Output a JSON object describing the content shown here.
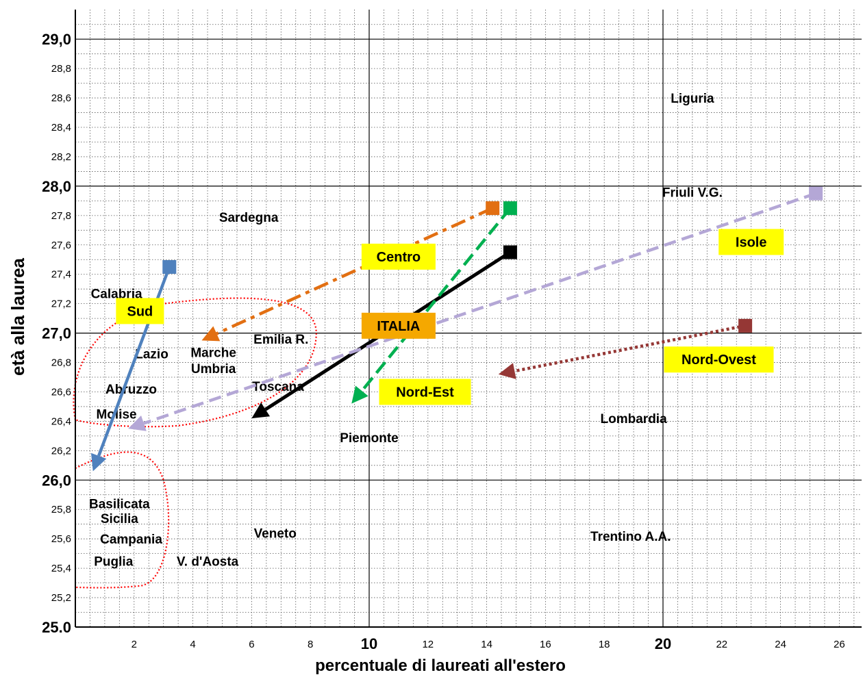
{
  "chart_data": {
    "type": "scatter",
    "xlabel": "percentuale di laureati all'estero",
    "ylabel": "età alla laurea",
    "xlim": [
      0,
      27
    ],
    "ylim": [
      25.0,
      29.2
    ],
    "grid": true,
    "x_ticks": [
      {
        "value": 2,
        "label": "2",
        "major": false
      },
      {
        "value": 4,
        "label": "4",
        "major": false
      },
      {
        "value": 6,
        "label": "6",
        "major": false
      },
      {
        "value": 8,
        "label": "8",
        "major": false
      },
      {
        "value": 10,
        "label": "10",
        "major": true
      },
      {
        "value": 12,
        "label": "12",
        "major": false
      },
      {
        "value": 14,
        "label": "14",
        "major": false
      },
      {
        "value": 16,
        "label": "16",
        "major": false
      },
      {
        "value": 18,
        "label": "18",
        "major": false
      },
      {
        "value": 20,
        "label": "20",
        "major": true
      },
      {
        "value": 22,
        "label": "22",
        "major": false
      },
      {
        "value": 24,
        "label": "24",
        "major": false
      },
      {
        "value": 26,
        "label": "26",
        "major": false
      }
    ],
    "y_ticks": [
      {
        "value": 25.0,
        "label": "25.0",
        "major": true
      },
      {
        "value": 25.2,
        "label": "25,2",
        "major": false
      },
      {
        "value": 25.4,
        "label": "25,4",
        "major": false
      },
      {
        "value": 25.6,
        "label": "25,6",
        "major": false
      },
      {
        "value": 25.8,
        "label": "25,8",
        "major": false
      },
      {
        "value": 26.0,
        "label": "26,0",
        "major": true
      },
      {
        "value": 26.2,
        "label": "26,2",
        "major": false
      },
      {
        "value": 26.4,
        "label": "26,4",
        "major": false
      },
      {
        "value": 26.6,
        "label": "26,6",
        "major": false
      },
      {
        "value": 26.8,
        "label": "26,8",
        "major": false
      },
      {
        "value": 27.0,
        "label": "27,0",
        "major": true
      },
      {
        "value": 27.2,
        "label": "27,2",
        "major": false
      },
      {
        "value": 27.4,
        "label": "27,4",
        "major": false
      },
      {
        "value": 27.6,
        "label": "27,6",
        "major": false
      },
      {
        "value": 27.8,
        "label": "27,8",
        "major": false
      },
      {
        "value": 28.0,
        "label": "28,0",
        "major": true
      },
      {
        "value": 28.2,
        "label": "28,2",
        "major": false
      },
      {
        "value": 28.4,
        "label": "28,4",
        "major": false
      },
      {
        "value": 28.6,
        "label": "28,6",
        "major": false
      },
      {
        "value": 28.8,
        "label": "28,8",
        "major": false
      },
      {
        "value": 29.0,
        "label": "29,0",
        "major": true
      }
    ],
    "regions": [
      {
        "name": "Liguria",
        "x": 21.0,
        "y": 28.6
      },
      {
        "name": "Friuli V.G.",
        "x": 21.0,
        "y": 27.96
      },
      {
        "name": "Sardegna",
        "x": 5.9,
        "y": 27.79
      },
      {
        "name": "Calabria",
        "x": 1.4,
        "y": 27.27
      },
      {
        "name": "Emilia  R.",
        "x": 7.0,
        "y": 26.96
      },
      {
        "name": "Lazio",
        "x": 2.6,
        "y": 26.86
      },
      {
        "name": "Marche",
        "x": 4.7,
        "y": 26.87
      },
      {
        "name": "Umbria",
        "x": 4.7,
        "y": 26.76
      },
      {
        "name": "Toscana",
        "x": 6.9,
        "y": 26.64
      },
      {
        "name": "Abruzzo",
        "x": 1.9,
        "y": 26.62
      },
      {
        "name": "Molise",
        "x": 1.4,
        "y": 26.45
      },
      {
        "name": "Lombardia",
        "x": 19.0,
        "y": 26.42
      },
      {
        "name": "Piemonte",
        "x": 10.0,
        "y": 26.29
      },
      {
        "name": "Basilicata",
        "x": 1.5,
        "y": 25.84
      },
      {
        "name": "Sicilia",
        "x": 1.5,
        "y": 25.74
      },
      {
        "name": "Veneto",
        "x": 6.8,
        "y": 25.64
      },
      {
        "name": "Trentino A.A.",
        "x": 18.9,
        "y": 25.62
      },
      {
        "name": "Campania",
        "x": 1.9,
        "y": 25.6
      },
      {
        "name": "Puglia",
        "x": 1.3,
        "y": 25.45
      },
      {
        "name": "V. d'Aosta",
        "x": 4.5,
        "y": 25.45
      }
    ],
    "series": [
      {
        "name": "ITALIA",
        "color": "#000000",
        "dash": "solid",
        "from": {
          "x": 14.8,
          "y": 27.55
        },
        "to": {
          "x": 6.0,
          "y": 26.42
        },
        "label_at": {
          "x": 11.0,
          "y": 27.05
        },
        "label_bg": "#f5a800"
      },
      {
        "name": "Centro",
        "color": "#e26f12",
        "dash": "dashdot",
        "from": {
          "x": 14.2,
          "y": 27.85
        },
        "to": {
          "x": 4.3,
          "y": 26.95
        },
        "label_at": {
          "x": 11.0,
          "y": 27.52
        },
        "label_bg": "#ffff00"
      },
      {
        "name": "Sud",
        "color": "#4f81bd",
        "dash": "solid",
        "from": {
          "x": 3.2,
          "y": 27.45
        },
        "to": {
          "x": 0.6,
          "y": 26.06
        },
        "label_at": {
          "x": 2.2,
          "y": 27.15
        },
        "label_bg": "#ffff00"
      },
      {
        "name": "Nord-Est",
        "color": "#00b050",
        "dash": "longdash",
        "from": {
          "x": 14.8,
          "y": 27.85
        },
        "to": {
          "x": 9.4,
          "y": 26.52
        },
        "label_at": {
          "x": 11.9,
          "y": 26.6
        },
        "label_bg": "#ffff00"
      },
      {
        "name": "Isole",
        "color": "#b4a7d6",
        "dash": "dash",
        "from": {
          "x": 25.2,
          "y": 27.95
        },
        "to": {
          "x": 1.8,
          "y": 26.35
        },
        "label_at": {
          "x": 23.0,
          "y": 27.62
        },
        "label_bg": "#ffff00"
      },
      {
        "name": "Nord-Ovest",
        "color": "#953735",
        "dash": "dot",
        "from": {
          "x": 22.8,
          "y": 27.05
        },
        "to": {
          "x": 14.4,
          "y": 26.72
        },
        "label_at": {
          "x": 21.9,
          "y": 26.82
        },
        "label_bg": "#ffff00"
      }
    ],
    "annotations": [
      {
        "type": "ellipse",
        "color": "#ff0000",
        "style": "dotted",
        "encloses": [
          "Lazio",
          "Marche",
          "Umbria",
          "Abruzzo",
          "Emilia  R.",
          "Toscana"
        ]
      },
      {
        "type": "ellipse",
        "color": "#ff0000",
        "style": "dotted",
        "encloses": [
          "Basilicata",
          "Sicilia",
          "Campania",
          "Puglia"
        ]
      }
    ]
  }
}
